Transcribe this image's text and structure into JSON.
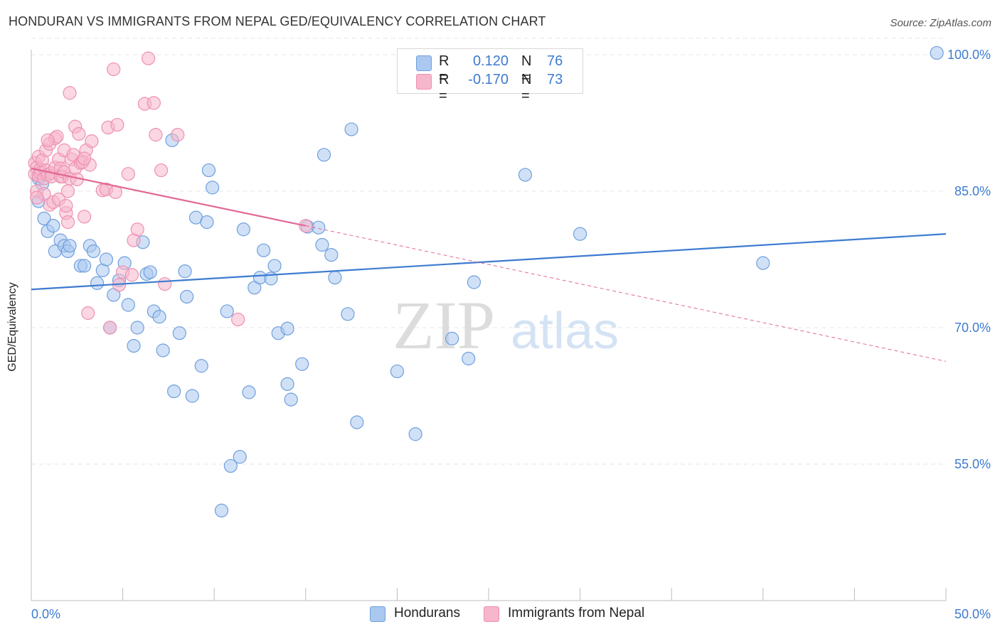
{
  "title": "HONDURAN VS IMMIGRANTS FROM NEPAL GED/EQUIVALENCY CORRELATION CHART",
  "source": "Source: ZipAtlas.com",
  "watermark": {
    "zip": "ZIP",
    "atlas": "atlas"
  },
  "colors": {
    "blue": "#3d7bd0",
    "blue_fill": "#aac8f0",
    "blue_stroke": "#6f9fdc",
    "pink": "#e26896",
    "pink_fill": "#f6b6cb",
    "pink_stroke": "#ee90b2",
    "grid": "#e4e4e4",
    "axis_text": "#3d7bd0"
  },
  "legend": {
    "rows": [
      {
        "r_label": "R =",
        "r_value": "0.120",
        "n_label": "N =",
        "n_value": "76"
      },
      {
        "r_label": "R =",
        "r_value": "-0.170",
        "n_label": "N =",
        "n_value": "73"
      }
    ]
  },
  "bottom_legend": {
    "series1": "Hondurans",
    "series2": "Immigrants from Nepal"
  },
  "chart_data": {
    "type": "scatter",
    "title": "HONDURAN VS IMMIGRANTS FROM NEPAL GED/EQUIVALENCY CORRELATION CHART",
    "xlabel": "",
    "ylabel": "GED/Equivalency",
    "xlim": [
      0,
      50
    ],
    "ylim": [
      40,
      102
    ],
    "x_tick_labels": [
      "0.0%",
      "50.0%"
    ],
    "y_ticks": [
      55,
      70,
      85,
      100
    ],
    "y_tick_labels": [
      "55.0%",
      "70.0%",
      "85.0%",
      "100.0%"
    ],
    "grid": true,
    "series": [
      {
        "name": "Hondurans",
        "color": "blue",
        "r": 0.12,
        "n": 76,
        "trend": {
          "x": [
            0,
            50
          ],
          "y": [
            74.2,
            80.3
          ],
          "dashed_to": null
        },
        "points": [
          [
            0.4,
            83.9
          ],
          [
            0.4,
            86.4
          ],
          [
            0.6,
            85.8
          ],
          [
            0.7,
            82.0
          ],
          [
            0.9,
            80.6
          ],
          [
            1.2,
            81.2
          ],
          [
            1.3,
            78.4
          ],
          [
            1.6,
            79.6
          ],
          [
            1.8,
            79.0
          ],
          [
            2.0,
            78.4
          ],
          [
            2.1,
            79.0
          ],
          [
            2.7,
            76.8
          ],
          [
            2.9,
            76.8
          ],
          [
            3.2,
            79.0
          ],
          [
            3.4,
            78.4
          ],
          [
            3.6,
            74.9
          ],
          [
            3.9,
            76.3
          ],
          [
            4.1,
            77.5
          ],
          [
            4.3,
            70.0
          ],
          [
            4.5,
            73.6
          ],
          [
            4.8,
            75.2
          ],
          [
            5.1,
            77.1
          ],
          [
            5.3,
            72.5
          ],
          [
            5.6,
            68.0
          ],
          [
            5.8,
            70.0
          ],
          [
            6.1,
            79.4
          ],
          [
            6.3,
            75.9
          ],
          [
            6.5,
            76.1
          ],
          [
            6.7,
            71.8
          ],
          [
            7.0,
            71.2
          ],
          [
            7.2,
            67.5
          ],
          [
            7.7,
            90.6
          ],
          [
            7.8,
            63.0
          ],
          [
            8.1,
            69.4
          ],
          [
            8.4,
            76.2
          ],
          [
            8.5,
            73.4
          ],
          [
            8.8,
            62.5
          ],
          [
            9.0,
            82.1
          ],
          [
            9.3,
            65.8
          ],
          [
            9.6,
            81.6
          ],
          [
            9.7,
            87.3
          ],
          [
            9.9,
            85.4
          ],
          [
            10.4,
            49.9
          ],
          [
            10.7,
            71.8
          ],
          [
            10.9,
            54.8
          ],
          [
            11.4,
            55.8
          ],
          [
            11.6,
            80.8
          ],
          [
            11.9,
            62.9
          ],
          [
            12.2,
            74.4
          ],
          [
            12.5,
            75.5
          ],
          [
            12.7,
            78.5
          ],
          [
            13.1,
            75.4
          ],
          [
            13.3,
            76.8
          ],
          [
            13.5,
            69.4
          ],
          [
            14.0,
            63.8
          ],
          [
            14.2,
            62.1
          ],
          [
            14.0,
            69.9
          ],
          [
            14.8,
            66.0
          ],
          [
            15.1,
            81.1
          ],
          [
            15.7,
            81.0
          ],
          [
            15.9,
            79.1
          ],
          [
            16.0,
            89.0
          ],
          [
            16.4,
            78.0
          ],
          [
            16.6,
            75.5
          ],
          [
            17.3,
            71.5
          ],
          [
            17.5,
            91.8
          ],
          [
            17.8,
            59.6
          ],
          [
            20.0,
            65.2
          ],
          [
            21.0,
            58.3
          ],
          [
            23.0,
            68.8
          ],
          [
            23.9,
            66.6
          ],
          [
            24.2,
            75.0
          ],
          [
            27.0,
            86.8
          ],
          [
            30.0,
            80.3
          ],
          [
            40.0,
            77.1
          ],
          [
            49.5,
            100.2
          ]
        ]
      },
      {
        "name": "Immigrants from Nepal",
        "color": "pink",
        "r": -0.17,
        "n": 73,
        "trend": {
          "x": [
            0,
            15.0
          ],
          "y": [
            87.5,
            81.2
          ],
          "dashed_to": [
            50,
            66.3
          ]
        },
        "points": [
          [
            0.2,
            88.1
          ],
          [
            0.2,
            86.9
          ],
          [
            0.3,
            85.0
          ],
          [
            0.3,
            87.6
          ],
          [
            0.4,
            88.8
          ],
          [
            0.4,
            86.7
          ],
          [
            0.5,
            87.4
          ],
          [
            0.5,
            87.0
          ],
          [
            0.6,
            88.4
          ],
          [
            0.7,
            86.4
          ],
          [
            0.7,
            84.7
          ],
          [
            0.8,
            87.3
          ],
          [
            0.8,
            89.5
          ],
          [
            0.9,
            86.8
          ],
          [
            1.0,
            90.2
          ],
          [
            1.0,
            83.5
          ],
          [
            1.1,
            87.0
          ],
          [
            1.1,
            86.6
          ],
          [
            1.2,
            83.8
          ],
          [
            1.3,
            90.8
          ],
          [
            1.3,
            87.6
          ],
          [
            1.4,
            91.0
          ],
          [
            1.5,
            88.5
          ],
          [
            1.5,
            84.1
          ],
          [
            1.6,
            87.5
          ],
          [
            1.6,
            86.6
          ],
          [
            1.7,
            86.6
          ],
          [
            1.8,
            89.5
          ],
          [
            1.8,
            87.1
          ],
          [
            1.9,
            82.6
          ],
          [
            1.9,
            83.4
          ],
          [
            2.0,
            81.6
          ],
          [
            2.0,
            85.0
          ],
          [
            2.1,
            95.8
          ],
          [
            2.1,
            86.4
          ],
          [
            2.2,
            88.5
          ],
          [
            2.3,
            89.0
          ],
          [
            2.4,
            92.1
          ],
          [
            2.4,
            87.5
          ],
          [
            2.5,
            86.3
          ],
          [
            2.6,
            91.3
          ],
          [
            2.7,
            88.1
          ],
          [
            2.8,
            88.2
          ],
          [
            2.9,
            82.2
          ],
          [
            3.0,
            89.5
          ],
          [
            3.1,
            71.6
          ],
          [
            3.2,
            87.9
          ],
          [
            3.3,
            90.5
          ],
          [
            3.9,
            85.1
          ],
          [
            4.1,
            85.2
          ],
          [
            4.2,
            92.0
          ],
          [
            4.3,
            70.0
          ],
          [
            4.5,
            98.4
          ],
          [
            4.6,
            84.9
          ],
          [
            4.7,
            92.3
          ],
          [
            4.8,
            74.7
          ],
          [
            5.0,
            76.1
          ],
          [
            5.3,
            86.9
          ],
          [
            5.5,
            75.8
          ],
          [
            5.6,
            79.6
          ],
          [
            5.8,
            80.8
          ],
          [
            6.2,
            94.6
          ],
          [
            6.4,
            99.6
          ],
          [
            6.7,
            94.7
          ],
          [
            6.8,
            91.2
          ],
          [
            7.1,
            87.3
          ],
          [
            7.3,
            74.8
          ],
          [
            8.0,
            91.2
          ],
          [
            11.3,
            70.9
          ],
          [
            15.0,
            81.2
          ],
          [
            0.3,
            84.3
          ],
          [
            0.9,
            90.6
          ],
          [
            2.9,
            88.6
          ]
        ]
      }
    ]
  }
}
